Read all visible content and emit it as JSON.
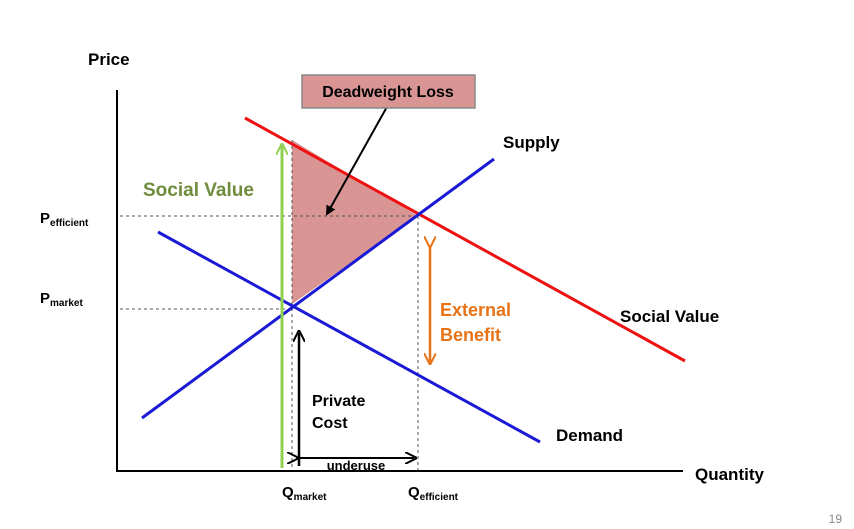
{
  "axes": {
    "y_label": "Price",
    "x_label": "Quantity",
    "p_efficient": {
      "base": "P",
      "sub": "efficient"
    },
    "p_market": {
      "base": "P",
      "sub": "market"
    },
    "q_market": {
      "base": "Q",
      "sub": "market"
    },
    "q_efficient": {
      "base": "Q",
      "sub": "efficient"
    }
  },
  "curves": {
    "supply": "Supply",
    "demand": "Demand",
    "social_value": "Social Value"
  },
  "callouts": {
    "deadweight_loss": "Deadweight Loss",
    "social_value_arrow": "Social Value",
    "external_benefit_line1": "External",
    "external_benefit_line2": "Benefit",
    "private_cost_line1": "Private",
    "private_cost_line2": "Cost",
    "underuse": "underuse"
  },
  "slide_number": "19",
  "colors": {
    "supply": "#1a1ad6",
    "demand": "#1a1ad6",
    "social_value": "#ee1111",
    "deadweight_fill": "#d99494",
    "social_value_label": "#6e8c3c",
    "social_value_arrow": "#8fd050",
    "external_benefit": "#e87317",
    "axis": "#000000"
  }
}
